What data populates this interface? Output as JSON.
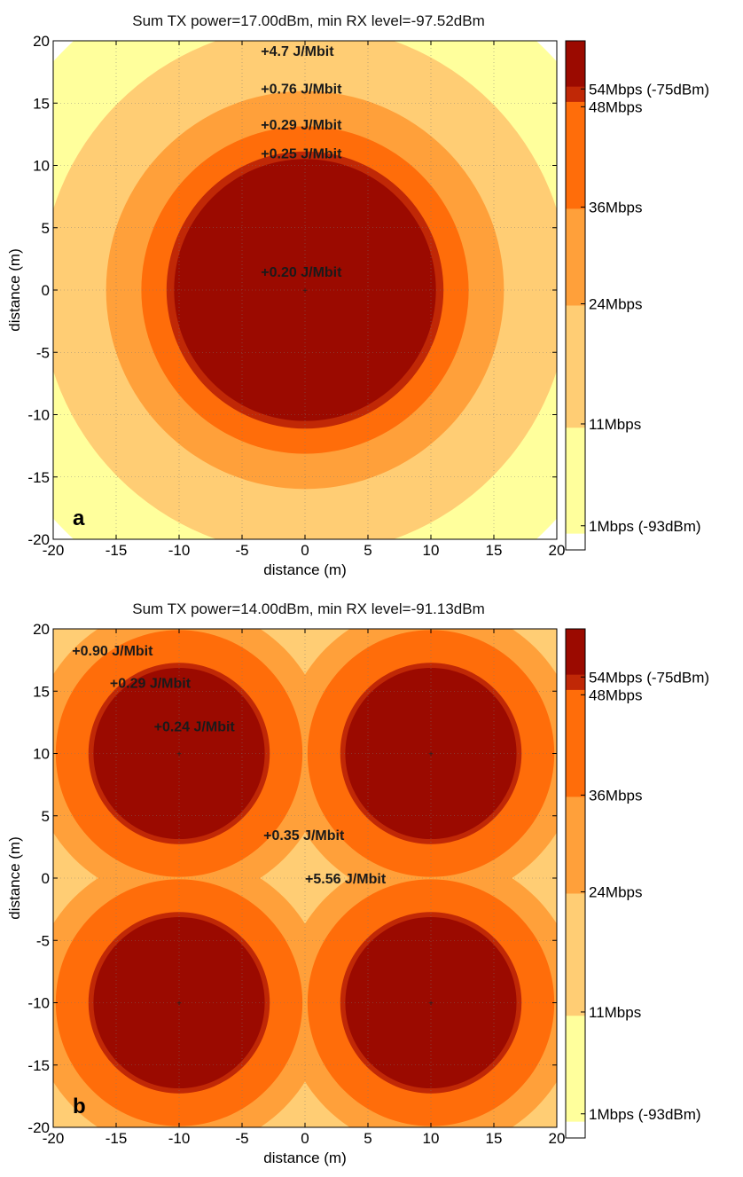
{
  "chart_data": [
    {
      "type": "heatmap",
      "title": "Sum TX power=17.00dBm, min RX level=-97.52dBm",
      "panel_label": "a",
      "xlabel": "distance (m)",
      "ylabel": "distance (m)",
      "xlim": [
        -20,
        20
      ],
      "ylim": [
        -20,
        20
      ],
      "xticks": [
        -20,
        -15,
        -10,
        -5,
        0,
        5,
        10,
        15,
        20
      ],
      "yticks": [
        -20,
        -15,
        -10,
        -5,
        0,
        5,
        10,
        15,
        20
      ],
      "grid": true,
      "access_points": [
        [
          0,
          0
        ]
      ],
      "coverage_radii_m": {
        "54Mbps": 10.4,
        "48Mbps": 11.0,
        "36Mbps": 13.0,
        "24Mbps": 15.8,
        "11Mbps": 21.0,
        "1Mbps": 27.0
      },
      "annotations": [
        {
          "text": "+4.7 J/Mbit",
          "x": -3.5,
          "y": 19.2
        },
        {
          "text": "+0.76 J/Mbit",
          "x": -3.5,
          "y": 16.2
        },
        {
          "text": "+0.29 J/Mbit",
          "x": -3.5,
          "y": 13.3
        },
        {
          "text": "+0.25 J/Mbit",
          "x": -3.5,
          "y": 11.0
        },
        {
          "text": "+0.20 J/Mbit",
          "x": -3.5,
          "y": 1.5
        }
      ]
    },
    {
      "type": "heatmap",
      "title": "Sum TX power=14.00dBm, min RX level=-91.13dBm",
      "panel_label": "b",
      "xlabel": "distance (m)",
      "ylabel": "distance (m)",
      "xlim": [
        -20,
        20
      ],
      "ylim": [
        -20,
        20
      ],
      "xticks": [
        -20,
        -15,
        -10,
        -5,
        0,
        5,
        10,
        15,
        20
      ],
      "yticks": [
        -20,
        -15,
        -10,
        -5,
        0,
        5,
        10,
        15,
        20
      ],
      "grid": true,
      "access_points": [
        [
          -10,
          10
        ],
        [
          10,
          10
        ],
        [
          -10,
          -10
        ],
        [
          10,
          -10
        ]
      ],
      "coverage_radii_m": {
        "54Mbps": 6.8,
        "48Mbps": 7.2,
        "36Mbps": 9.8,
        "24Mbps": 11.8,
        "11Mbps": 14.2,
        "1Mbps": 17.0
      },
      "annotations": [
        {
          "text": "+0.90 J/Mbit",
          "x": -18.5,
          "y": 18.3
        },
        {
          "text": "+0.29 J/Mbit",
          "x": -15.5,
          "y": 15.7
        },
        {
          "text": "+0.24 J/Mbit",
          "x": -12.0,
          "y": 12.2
        },
        {
          "text": "+0.35 J/Mbit",
          "x": -3.3,
          "y": 3.5
        },
        {
          "text": "+5.56 J/Mbit",
          "x": 0.0,
          "y": 0.0
        }
      ]
    }
  ],
  "colorbar": {
    "levels": [
      {
        "label": "54Mbps (-75dBm)",
        "color": "#9b0a00"
      },
      {
        "label": "48Mbps",
        "color": "#c02806"
      },
      {
        "label": "36Mbps",
        "color": "#ff6d0a"
      },
      {
        "label": "24Mbps",
        "color": "#ffa03a"
      },
      {
        "label": "11Mbps",
        "color": "#ffcd74"
      },
      {
        "label": "1Mbps (-93dBm)",
        "color": "#ffff9c"
      }
    ],
    "no_coverage_color": "#ffffff"
  }
}
